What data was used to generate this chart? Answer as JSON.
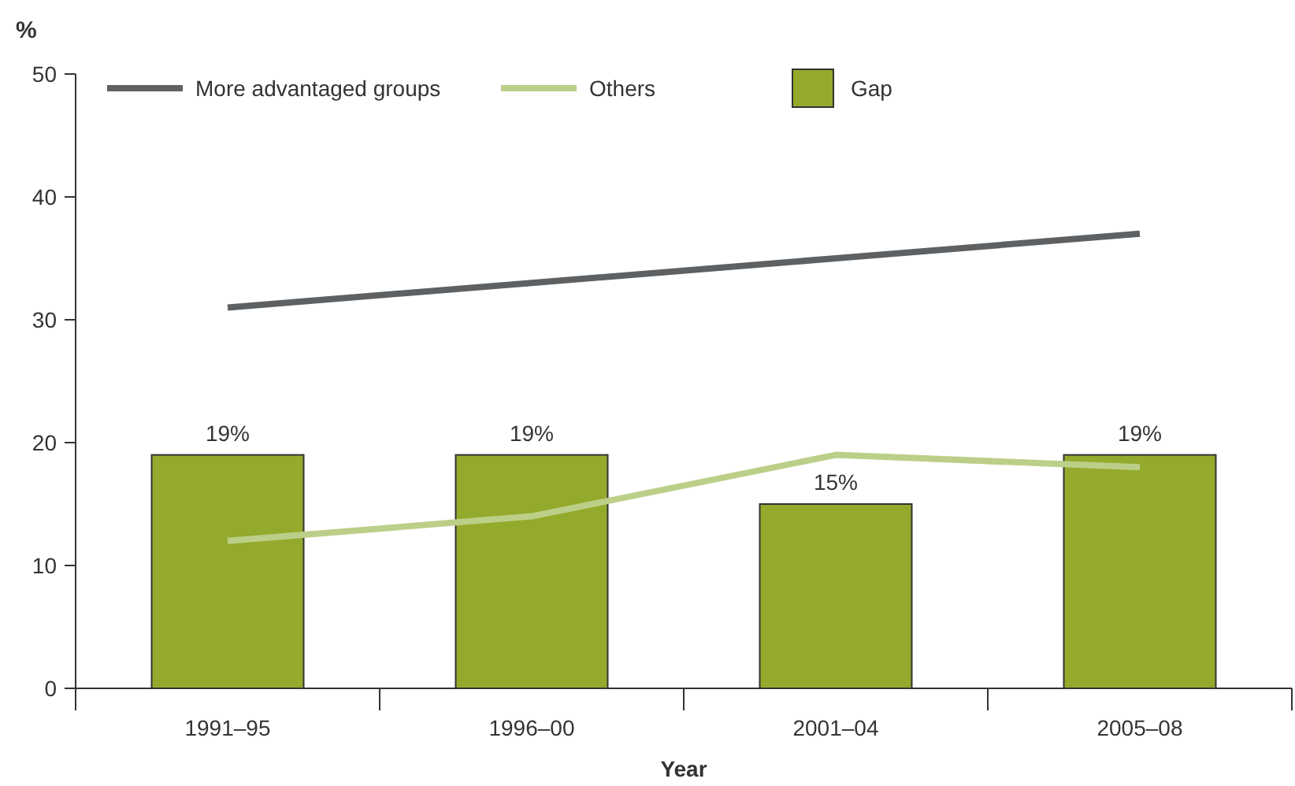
{
  "chart_data": {
    "type": "bar",
    "ylabel": "%",
    "xlabel": "Year",
    "categories": [
      "1991–95",
      "1996–00",
      "2001–04",
      "2005–08"
    ],
    "ylim": [
      0,
      50
    ],
    "yticks": [
      0,
      10,
      20,
      30,
      40,
      50
    ],
    "legend": "top left",
    "grid": false,
    "series": [
      {
        "name": "Gap",
        "color": "#94aa2c",
        "values": [
          19,
          19,
          15,
          19
        ],
        "value_labels": [
          "19%",
          "19%",
          "15%",
          "19%"
        ]
      },
      {
        "name": "More advantaged groups",
        "type": "line",
        "color": "#5d6164",
        "values": [
          31,
          33,
          35,
          37
        ]
      },
      {
        "name": "Others",
        "type": "line",
        "color": "#bccf88",
        "values": [
          12,
          14,
          19,
          18
        ]
      }
    ]
  }
}
